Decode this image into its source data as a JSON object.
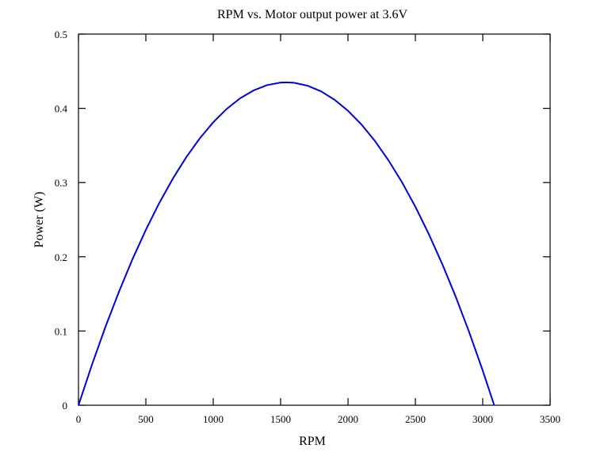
{
  "chart_data": {
    "type": "line",
    "title": "RPM vs. Motor output power at 3.6V",
    "xlabel": "RPM",
    "ylabel": "Power (W)",
    "xlim": [
      0,
      3500
    ],
    "ylim": [
      0,
      0.5
    ],
    "xticks": [
      0,
      500,
      1000,
      1500,
      2000,
      2500,
      3000,
      3500
    ],
    "yticks": [
      0,
      0.1,
      0.2,
      0.3,
      0.4,
      0.5
    ],
    "xtick_labels": [
      "0",
      "500",
      "1000",
      "1500",
      "2000",
      "2500",
      "3000",
      "3500"
    ],
    "ytick_labels": [
      "0",
      "0.1",
      "0.2",
      "0.3",
      "0.4",
      "0.5"
    ],
    "grid": false,
    "series": [
      {
        "name": "Power",
        "color": "#0000dd",
        "x": [
          0,
          100,
          200,
          300,
          400,
          500,
          600,
          700,
          800,
          900,
          1000,
          1100,
          1200,
          1300,
          1400,
          1500,
          1542.5,
          1600,
          1700,
          1800,
          1900,
          2000,
          2100,
          2200,
          2300,
          2400,
          2500,
          2600,
          2700,
          2800,
          2900,
          3000,
          3085
        ],
        "y": [
          0,
          0.0546,
          0.1055,
          0.1528,
          0.1964,
          0.2363,
          0.2726,
          0.3052,
          0.3342,
          0.3595,
          0.3812,
          0.3992,
          0.4136,
          0.4242,
          0.4313,
          0.4347,
          0.435,
          0.4344,
          0.4305,
          0.4229,
          0.4116,
          0.3967,
          0.3782,
          0.356,
          0.3301,
          0.3006,
          0.2674,
          0.2305,
          0.19,
          0.1459,
          0.0981,
          0.0466,
          0
        ]
      }
    ]
  }
}
